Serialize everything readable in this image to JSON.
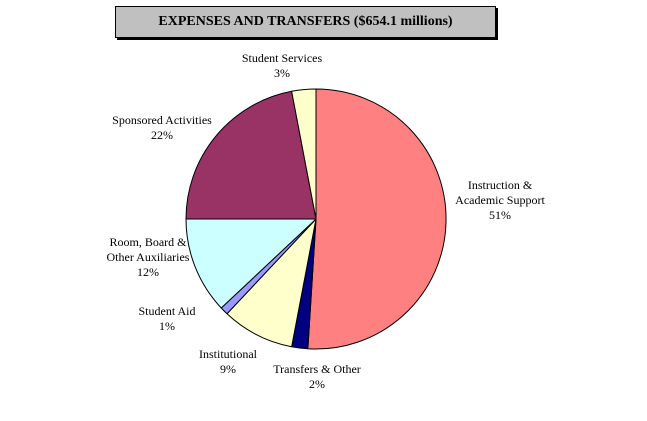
{
  "chart_data": {
    "type": "pie",
    "title": "EXPENSES AND TRANSFERS ($654.1 millions)",
    "start_angle_deg": 0,
    "direction": "clockwise",
    "slices": [
      {
        "label_lines": [
          "Instruction &",
          "Academic Support"
        ],
        "pct_label": "51%",
        "value": 51,
        "color": "#ff8080"
      },
      {
        "label_lines": [
          "Transfers & Other"
        ],
        "pct_label": "2%",
        "value": 2,
        "color": "#000080"
      },
      {
        "label_lines": [
          "Institutional"
        ],
        "pct_label": "9%",
        "value": 9,
        "color": "#ffffcc"
      },
      {
        "label_lines": [
          "Student Aid"
        ],
        "pct_label": "1%",
        "value": 1,
        "color": "#9999ff"
      },
      {
        "label_lines": [
          "Room, Board &",
          "Other Auxiliaries"
        ],
        "pct_label": "12%",
        "value": 12,
        "color": "#ccffff"
      },
      {
        "label_lines": [
          "Sponsored Activities"
        ],
        "pct_label": "22%",
        "value": 22,
        "color": "#993366"
      },
      {
        "label_lines": [
          "Student Services"
        ],
        "pct_label": "3%",
        "value": 3,
        "color": "#ffffcc"
      }
    ]
  }
}
